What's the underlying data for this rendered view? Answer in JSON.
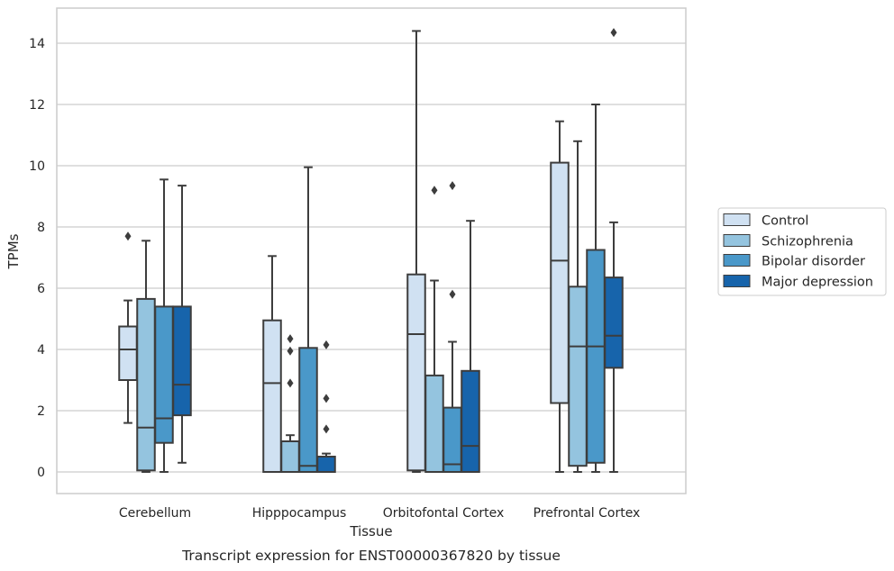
{
  "chart_data": {
    "type": "boxplot",
    "title": "",
    "caption": "Transcript expression for ENST00000367820 by tissue",
    "xlabel": "Tissue",
    "ylabel": "TPMs",
    "ylim": [
      -0.7,
      15.1
    ],
    "yticks": [
      0,
      2,
      4,
      6,
      8,
      10,
      12,
      14
    ],
    "ytick_labels": [
      "0",
      "2",
      "4",
      "6",
      "8",
      "10",
      "12",
      "14"
    ],
    "grid": "horizontal",
    "legend_position": "right",
    "categories": [
      "Cerebellum",
      "Hipppocampus",
      "Orbitofontal Cortex",
      "Prefrontal Cortex"
    ],
    "series": [
      {
        "name": "Control",
        "color": "#d0e1f2",
        "boxes": [
          {
            "whislo": 1.6,
            "q1": 3.0,
            "med": 4.0,
            "q3": 4.75,
            "whishi": 5.6,
            "fliers": [
              7.7
            ]
          },
          {
            "whislo": 0.0,
            "q1": 0.0,
            "med": 2.9,
            "q3": 4.95,
            "whishi": 7.05,
            "fliers": []
          },
          {
            "whislo": 0.0,
            "q1": 0.05,
            "med": 4.5,
            "q3": 6.45,
            "whishi": 14.4,
            "fliers": []
          },
          {
            "whislo": 0.0,
            "q1": 2.25,
            "med": 6.9,
            "q3": 10.1,
            "whishi": 11.45,
            "fliers": []
          }
        ]
      },
      {
        "name": "Schizophrenia",
        "color": "#94c4df",
        "boxes": [
          {
            "whislo": 0.0,
            "q1": 0.05,
            "med": 1.45,
            "q3": 5.65,
            "whishi": 7.55,
            "fliers": []
          },
          {
            "whislo": 0.0,
            "q1": 0.0,
            "med": 0.0,
            "q3": 1.0,
            "whishi": 1.2,
            "fliers": [
              2.9,
              3.95,
              4.35
            ]
          },
          {
            "whislo": 0.0,
            "q1": 0.0,
            "med": 0.0,
            "q3": 3.15,
            "whishi": 6.25,
            "fliers": [
              9.2
            ]
          },
          {
            "whislo": 0.0,
            "q1": 0.2,
            "med": 4.1,
            "q3": 6.05,
            "whishi": 10.8,
            "fliers": []
          }
        ]
      },
      {
        "name": "Bipolar disorder",
        "color": "#4a98c9",
        "boxes": [
          {
            "whislo": 0.0,
            "q1": 0.95,
            "med": 1.75,
            "q3": 5.4,
            "whishi": 9.55,
            "fliers": []
          },
          {
            "whislo": 0.0,
            "q1": 0.0,
            "med": 0.2,
            "q3": 4.05,
            "whishi": 9.95,
            "fliers": []
          },
          {
            "whislo": 0.0,
            "q1": 0.0,
            "med": 0.25,
            "q3": 2.1,
            "whishi": 4.25,
            "fliers": [
              5.8,
              9.35
            ]
          },
          {
            "whislo": 0.0,
            "q1": 0.3,
            "med": 4.1,
            "q3": 7.25,
            "whishi": 12.0,
            "fliers": []
          }
        ]
      },
      {
        "name": "Major depression",
        "color": "#1764ab",
        "boxes": [
          {
            "whislo": 0.3,
            "q1": 1.85,
            "med": 2.85,
            "q3": 5.4,
            "whishi": 9.35,
            "fliers": []
          },
          {
            "whislo": 0.0,
            "q1": 0.0,
            "med": 0.0,
            "q3": 0.5,
            "whishi": 0.6,
            "fliers": [
              1.4,
              2.4,
              4.15
            ]
          },
          {
            "whislo": 0.0,
            "q1": 0.0,
            "med": 0.85,
            "q3": 3.3,
            "whishi": 8.2,
            "fliers": []
          },
          {
            "whislo": 0.0,
            "q1": 3.4,
            "med": 4.45,
            "q3": 6.35,
            "whishi": 8.15,
            "fliers": [
              14.35
            ]
          }
        ]
      }
    ]
  }
}
